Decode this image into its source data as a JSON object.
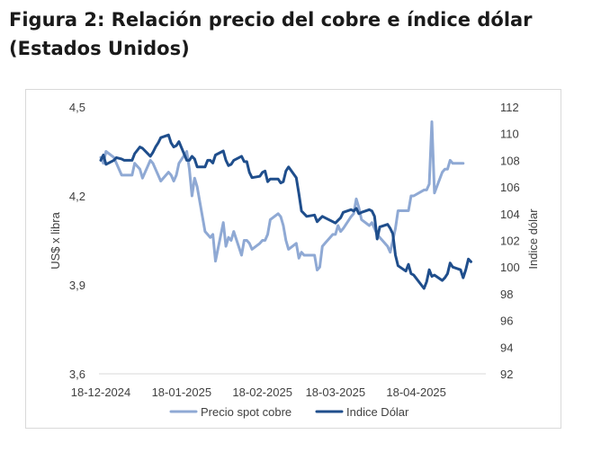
{
  "figure": {
    "title_line1": "Figura 2: Relación precio del cobre e índice dólar",
    "title_line2": "(Estados Unidos)"
  },
  "chart_data": {
    "type": "line",
    "left_axis": {
      "label": "US$ x libra",
      "range": [
        3.6,
        4.5
      ],
      "ticks": [
        "3,6",
        "3,9",
        "4,2",
        "4,5"
      ],
      "tick_values": [
        3.6,
        3.9,
        4.2,
        4.5
      ]
    },
    "right_axis": {
      "label": "Indice dólar",
      "range": [
        92,
        112
      ],
      "ticks": [
        "92",
        "94",
        "96",
        "98",
        "100",
        "102",
        "104",
        "106",
        "108",
        "110",
        "112"
      ],
      "tick_values": [
        92,
        94,
        96,
        98,
        100,
        102,
        104,
        106,
        108,
        110,
        112
      ]
    },
    "x_ticks": [
      "18-12-2024",
      "18-01-2025",
      "18-02-2025",
      "18-03-2025",
      "18-04-2025"
    ],
    "x_range": [
      "2024-12-18",
      "2025-05-14"
    ],
    "grid": false,
    "legend_position": "bottom",
    "series": [
      {
        "name": "Precio spot cobre",
        "axis": "left",
        "color": "#8fa9d4",
        "points": [
          [
            "2024-12-18",
            4.33
          ],
          [
            "2024-12-19",
            4.31
          ],
          [
            "2024-12-20",
            4.35
          ],
          [
            "2024-12-23",
            4.33
          ],
          [
            "2024-12-24",
            4.31
          ],
          [
            "2024-12-26",
            4.27
          ],
          [
            "2024-12-27",
            4.27
          ],
          [
            "2024-12-30",
            4.27
          ],
          [
            "2024-12-31",
            4.31
          ],
          [
            "2025-01-02",
            4.29
          ],
          [
            "2025-01-03",
            4.26
          ],
          [
            "2025-01-06",
            4.32
          ],
          [
            "2025-01-07",
            4.31
          ],
          [
            "2025-01-08",
            4.29
          ],
          [
            "2025-01-09",
            4.27
          ],
          [
            "2025-01-10",
            4.25
          ],
          [
            "2025-01-13",
            4.28
          ],
          [
            "2025-01-14",
            4.27
          ],
          [
            "2025-01-15",
            4.25
          ],
          [
            "2025-01-16",
            4.27
          ],
          [
            "2025-01-17",
            4.31
          ],
          [
            "2025-01-20",
            4.35
          ],
          [
            "2025-01-21",
            4.29
          ],
          [
            "2025-01-22",
            4.2
          ],
          [
            "2025-01-23",
            4.26
          ],
          [
            "2025-01-24",
            4.23
          ],
          [
            "2025-01-27",
            4.08
          ],
          [
            "2025-01-28",
            4.07
          ],
          [
            "2025-01-29",
            4.06
          ],
          [
            "2025-01-30",
            4.07
          ],
          [
            "2025-01-31",
            3.98
          ],
          [
            "2025-02-03",
            4.11
          ],
          [
            "2025-02-04",
            4.03
          ],
          [
            "2025-02-05",
            4.06
          ],
          [
            "2025-02-06",
            4.05
          ],
          [
            "2025-02-07",
            4.08
          ],
          [
            "2025-02-10",
            4.0
          ],
          [
            "2025-02-11",
            4.05
          ],
          [
            "2025-02-12",
            4.05
          ],
          [
            "2025-02-13",
            4.04
          ],
          [
            "2025-02-14",
            4.02
          ],
          [
            "2025-02-17",
            4.04
          ],
          [
            "2025-02-18",
            4.05
          ],
          [
            "2025-02-19",
            4.05
          ],
          [
            "2025-02-20",
            4.07
          ],
          [
            "2025-02-21",
            4.12
          ],
          [
            "2025-02-24",
            4.14
          ],
          [
            "2025-02-25",
            4.13
          ],
          [
            "2025-02-26",
            4.1
          ],
          [
            "2025-02-27",
            4.05
          ],
          [
            "2025-02-28",
            4.02
          ],
          [
            "2025-03-03",
            4.04
          ],
          [
            "2025-03-04",
            3.99
          ],
          [
            "2025-03-05",
            4.01
          ],
          [
            "2025-03-06",
            4.0
          ],
          [
            "2025-03-07",
            4.0
          ],
          [
            "2025-03-10",
            4.0
          ],
          [
            "2025-03-11",
            3.95
          ],
          [
            "2025-03-12",
            3.96
          ],
          [
            "2025-03-13",
            4.03
          ],
          [
            "2025-03-14",
            4.04
          ],
          [
            "2025-03-17",
            4.07
          ],
          [
            "2025-03-18",
            4.07
          ],
          [
            "2025-03-19",
            4.1
          ],
          [
            "2025-03-20",
            4.08
          ],
          [
            "2025-03-21",
            4.09
          ],
          [
            "2025-03-24",
            4.13
          ],
          [
            "2025-03-25",
            4.14
          ],
          [
            "2025-03-26",
            4.19
          ],
          [
            "2025-03-27",
            4.16
          ],
          [
            "2025-03-28",
            4.12
          ],
          [
            "2025-03-31",
            4.1
          ],
          [
            "2025-04-01",
            4.11
          ],
          [
            "2025-04-02",
            4.09
          ],
          [
            "2025-04-03",
            4.07
          ],
          [
            "2025-04-04",
            4.06
          ],
          [
            "2025-04-07",
            4.03
          ],
          [
            "2025-04-08",
            4.01
          ],
          [
            "2025-04-09",
            4.05
          ],
          [
            "2025-04-10",
            4.09
          ],
          [
            "2025-04-11",
            4.15
          ],
          [
            "2025-04-14",
            4.15
          ],
          [
            "2025-04-15",
            4.15
          ],
          [
            "2025-04-16",
            4.2
          ],
          [
            "2025-04-17",
            4.2
          ],
          [
            "2025-04-21",
            4.22
          ],
          [
            "2025-04-22",
            4.22
          ],
          [
            "2025-04-23",
            4.24
          ],
          [
            "2025-04-24",
            4.45
          ],
          [
            "2025-04-25",
            4.21
          ],
          [
            "2025-04-28",
            4.28
          ],
          [
            "2025-04-29",
            4.29
          ],
          [
            "2025-04-30",
            4.29
          ],
          [
            "2025-05-01",
            4.32
          ],
          [
            "2025-05-02",
            4.31
          ],
          [
            "2025-05-05",
            4.31
          ],
          [
            "2025-05-06",
            4.31
          ]
        ]
      },
      {
        "name": "Indice Dólar",
        "axis": "right",
        "color": "#1f4e8c",
        "points": [
          [
            "2024-12-18",
            108.0
          ],
          [
            "2024-12-19",
            108.4
          ],
          [
            "2024-12-20",
            107.7
          ],
          [
            "2024-12-23",
            108.0
          ],
          [
            "2024-12-24",
            108.2
          ],
          [
            "2024-12-26",
            108.1
          ],
          [
            "2024-12-27",
            108.0
          ],
          [
            "2024-12-30",
            108.0
          ],
          [
            "2024-12-31",
            108.5
          ],
          [
            "2025-01-02",
            109.0
          ],
          [
            "2025-01-03",
            108.9
          ],
          [
            "2025-01-06",
            108.3
          ],
          [
            "2025-01-07",
            108.6
          ],
          [
            "2025-01-08",
            109.0
          ],
          [
            "2025-01-09",
            109.3
          ],
          [
            "2025-01-10",
            109.7
          ],
          [
            "2025-01-13",
            109.9
          ],
          [
            "2025-01-14",
            109.3
          ],
          [
            "2025-01-15",
            109.0
          ],
          [
            "2025-01-16",
            109.1
          ],
          [
            "2025-01-17",
            109.4
          ],
          [
            "2025-01-20",
            108.0
          ],
          [
            "2025-01-21",
            108.0
          ],
          [
            "2025-01-22",
            108.3
          ],
          [
            "2025-01-23",
            108.1
          ],
          [
            "2025-01-24",
            107.5
          ],
          [
            "2025-01-27",
            107.5
          ],
          [
            "2025-01-28",
            108.0
          ],
          [
            "2025-01-29",
            108.0
          ],
          [
            "2025-01-30",
            107.8
          ],
          [
            "2025-01-31",
            108.4
          ],
          [
            "2025-02-03",
            108.7
          ],
          [
            "2025-02-04",
            108.0
          ],
          [
            "2025-02-05",
            107.6
          ],
          [
            "2025-02-06",
            107.7
          ],
          [
            "2025-02-07",
            108.0
          ],
          [
            "2025-02-10",
            108.3
          ],
          [
            "2025-02-11",
            107.9
          ],
          [
            "2025-02-12",
            107.9
          ],
          [
            "2025-02-13",
            107.1
          ],
          [
            "2025-02-14",
            106.7
          ],
          [
            "2025-02-17",
            106.8
          ],
          [
            "2025-02-18",
            107.1
          ],
          [
            "2025-02-19",
            107.2
          ],
          [
            "2025-02-20",
            106.4
          ],
          [
            "2025-02-21",
            106.6
          ],
          [
            "2025-02-24",
            106.6
          ],
          [
            "2025-02-25",
            106.3
          ],
          [
            "2025-02-26",
            106.4
          ],
          [
            "2025-02-27",
            107.2
          ],
          [
            "2025-02-28",
            107.5
          ],
          [
            "2025-03-03",
            106.7
          ],
          [
            "2025-03-04",
            105.5
          ],
          [
            "2025-03-05",
            104.2
          ],
          [
            "2025-03-06",
            104.0
          ],
          [
            "2025-03-07",
            103.8
          ],
          [
            "2025-03-10",
            103.9
          ],
          [
            "2025-03-11",
            103.4
          ],
          [
            "2025-03-12",
            103.6
          ],
          [
            "2025-03-13",
            103.8
          ],
          [
            "2025-03-14",
            103.7
          ],
          [
            "2025-03-17",
            103.4
          ],
          [
            "2025-03-18",
            103.3
          ],
          [
            "2025-03-19",
            103.5
          ],
          [
            "2025-03-20",
            103.7
          ],
          [
            "2025-03-21",
            104.1
          ],
          [
            "2025-03-24",
            104.3
          ],
          [
            "2025-03-25",
            104.2
          ],
          [
            "2025-03-26",
            104.4
          ],
          [
            "2025-03-27",
            104.0
          ],
          [
            "2025-03-28",
            104.1
          ],
          [
            "2025-03-31",
            104.3
          ],
          [
            "2025-04-01",
            104.2
          ],
          [
            "2025-04-02",
            103.8
          ],
          [
            "2025-04-03",
            102.1
          ],
          [
            "2025-04-04",
            103.0
          ],
          [
            "2025-04-07",
            103.2
          ],
          [
            "2025-04-08",
            102.9
          ],
          [
            "2025-04-09",
            102.5
          ],
          [
            "2025-04-10",
            100.9
          ],
          [
            "2025-04-11",
            100.1
          ],
          [
            "2025-04-14",
            99.7
          ],
          [
            "2025-04-15",
            100.2
          ],
          [
            "2025-04-16",
            99.5
          ],
          [
            "2025-04-17",
            99.4
          ],
          [
            "2025-04-21",
            98.4
          ],
          [
            "2025-04-22",
            98.9
          ],
          [
            "2025-04-23",
            99.8
          ],
          [
            "2025-04-24",
            99.3
          ],
          [
            "2025-04-25",
            99.4
          ],
          [
            "2025-04-28",
            99.0
          ],
          [
            "2025-04-29",
            99.2
          ],
          [
            "2025-04-30",
            99.5
          ],
          [
            "2025-05-01",
            100.3
          ],
          [
            "2025-05-02",
            100.0
          ],
          [
            "2025-05-05",
            99.8
          ],
          [
            "2025-05-06",
            99.2
          ],
          [
            "2025-05-07",
            99.8
          ],
          [
            "2025-05-08",
            100.6
          ],
          [
            "2025-05-09",
            100.4
          ]
        ]
      }
    ]
  }
}
